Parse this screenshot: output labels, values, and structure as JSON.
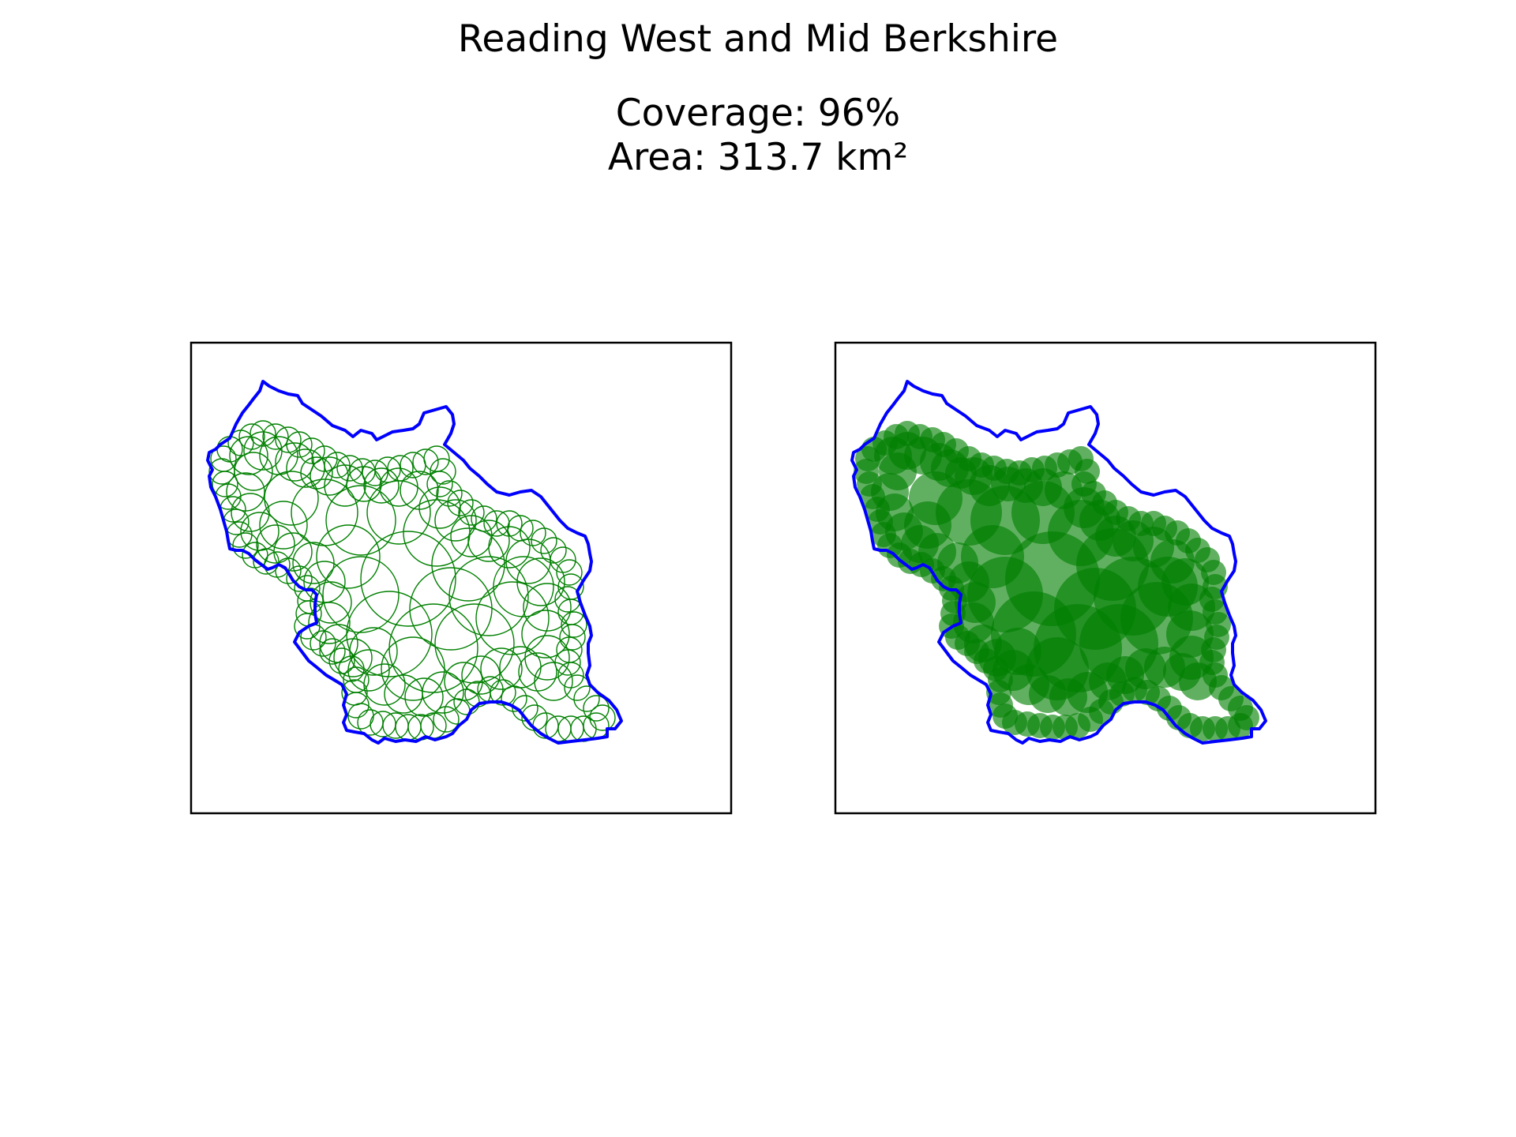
{
  "figure": {
    "title": "Reading West and Mid Berkshire",
    "coverage_label": "Coverage: 96%",
    "area_label": "Area: 313.7 km²"
  },
  "metrics": {
    "coverage_percent": 96,
    "area_km2": 313.7
  },
  "panels": [
    {
      "name": "circle-outlines",
      "style": "outline"
    },
    {
      "name": "circle-fills",
      "style": "filled"
    }
  ],
  "colors": {
    "boundary": "#0000ff",
    "circles": "#008000",
    "frame": "#000000",
    "background": "#ffffff"
  }
}
